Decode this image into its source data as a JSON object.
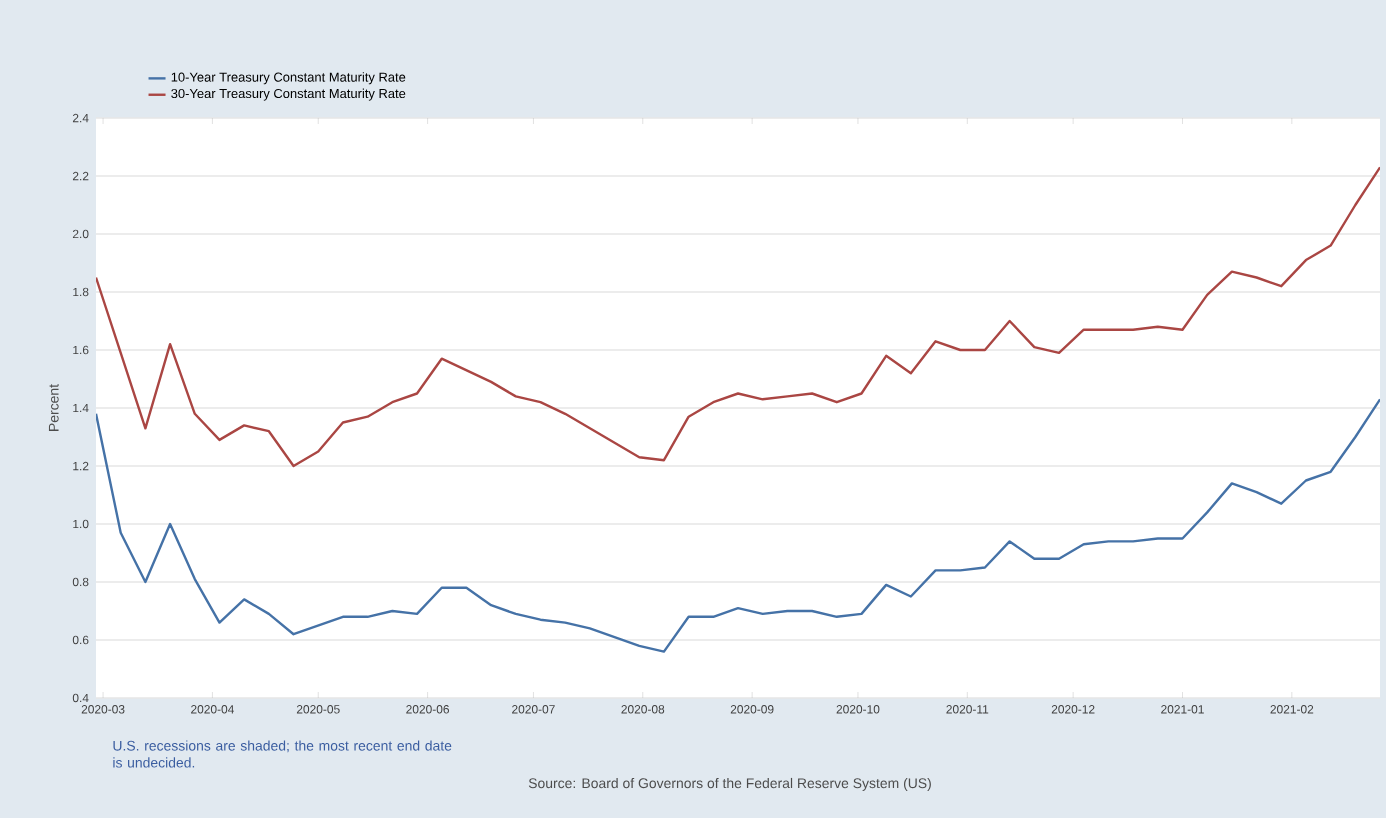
{
  "chart_data": {
    "type": "line",
    "ylabel": "Percent",
    "x": [
      "2020-02-28",
      "2020-03-06",
      "2020-03-13",
      "2020-03-20",
      "2020-03-27",
      "2020-04-03",
      "2020-04-10",
      "2020-04-17",
      "2020-04-24",
      "2020-05-01",
      "2020-05-08",
      "2020-05-15",
      "2020-05-22",
      "2020-05-29",
      "2020-06-05",
      "2020-06-12",
      "2020-06-19",
      "2020-06-26",
      "2020-07-03",
      "2020-07-10",
      "2020-07-17",
      "2020-07-24",
      "2020-07-31",
      "2020-08-07",
      "2020-08-14",
      "2020-08-21",
      "2020-08-28",
      "2020-09-04",
      "2020-09-11",
      "2020-09-18",
      "2020-09-25",
      "2020-10-02",
      "2020-10-09",
      "2020-10-16",
      "2020-10-23",
      "2020-10-30",
      "2020-11-06",
      "2020-11-13",
      "2020-11-20",
      "2020-11-27",
      "2020-12-04",
      "2020-12-11",
      "2020-12-18",
      "2020-12-25",
      "2021-01-01",
      "2021-01-08",
      "2021-01-15",
      "2021-01-22",
      "2021-01-29",
      "2021-02-05",
      "2021-02-12",
      "2021-02-19",
      "2021-02-26"
    ],
    "series": [
      {
        "name": "10-Year Treasury Constant Maturity Rate",
        "color": "#4572a7",
        "values": [
          1.38,
          0.97,
          0.8,
          1.0,
          0.81,
          0.66,
          0.74,
          0.69,
          0.62,
          0.65,
          0.68,
          0.68,
          0.7,
          0.69,
          0.78,
          0.78,
          0.72,
          0.69,
          0.67,
          0.66,
          0.64,
          0.61,
          0.58,
          0.56,
          0.68,
          0.68,
          0.71,
          0.69,
          0.7,
          0.7,
          0.68,
          0.69,
          0.79,
          0.75,
          0.84,
          0.84,
          0.85,
          0.94,
          0.88,
          0.88,
          0.93,
          0.94,
          0.94,
          0.95,
          0.95,
          1.04,
          1.14,
          1.11,
          1.07,
          1.15,
          1.18,
          1.3,
          1.43
        ]
      },
      {
        "name": "30-Year Treasury Constant Maturity Rate",
        "color": "#aa4643",
        "values": [
          1.85,
          1.59,
          1.33,
          1.62,
          1.38,
          1.29,
          1.34,
          1.32,
          1.2,
          1.25,
          1.35,
          1.37,
          1.42,
          1.45,
          1.57,
          1.53,
          1.49,
          1.44,
          1.42,
          1.38,
          1.33,
          1.28,
          1.23,
          1.22,
          1.37,
          1.42,
          1.45,
          1.43,
          1.44,
          1.45,
          1.42,
          1.45,
          1.58,
          1.52,
          1.63,
          1.6,
          1.6,
          1.7,
          1.61,
          1.59,
          1.67,
          1.67,
          1.67,
          1.68,
          1.67,
          1.79,
          1.87,
          1.85,
          1.82,
          1.91,
          1.96,
          2.1,
          2.23
        ]
      }
    ],
    "xlim": [
      "2020-02-28",
      "2021-02-26"
    ],
    "xticks": [
      {
        "value": "2020-03-01",
        "label": "2020-03"
      },
      {
        "value": "2020-04-01",
        "label": "2020-04"
      },
      {
        "value": "2020-05-01",
        "label": "2020-05"
      },
      {
        "value": "2020-06-01",
        "label": "2020-06"
      },
      {
        "value": "2020-07-01",
        "label": "2020-07"
      },
      {
        "value": "2020-08-01",
        "label": "2020-08"
      },
      {
        "value": "2020-09-01",
        "label": "2020-09"
      },
      {
        "value": "2020-10-01",
        "label": "2020-10"
      },
      {
        "value": "2020-11-01",
        "label": "2020-11"
      },
      {
        "value": "2020-12-01",
        "label": "2020-12"
      },
      {
        "value": "2021-01-01",
        "label": "2021-01"
      },
      {
        "value": "2021-02-01",
        "label": "2021-02"
      }
    ],
    "ylim": [
      0.4,
      2.4
    ],
    "yticks": [
      0.4,
      0.6,
      0.8,
      {
        "value": 1.0,
        "label": "1.0"
      },
      1.2,
      1.4,
      1.6,
      1.8,
      {
        "value": 2.0,
        "label": "2.0"
      },
      2.2,
      2.4
    ],
    "grid": "y",
    "legend": "top left",
    "marker": "none",
    "line_style": "solid",
    "annotations": [
      "U.S. recessions are shaded; the most recent end date is undecided.",
      "Source: Board of Governors of the Federal Reserve System (US)"
    ]
  }
}
